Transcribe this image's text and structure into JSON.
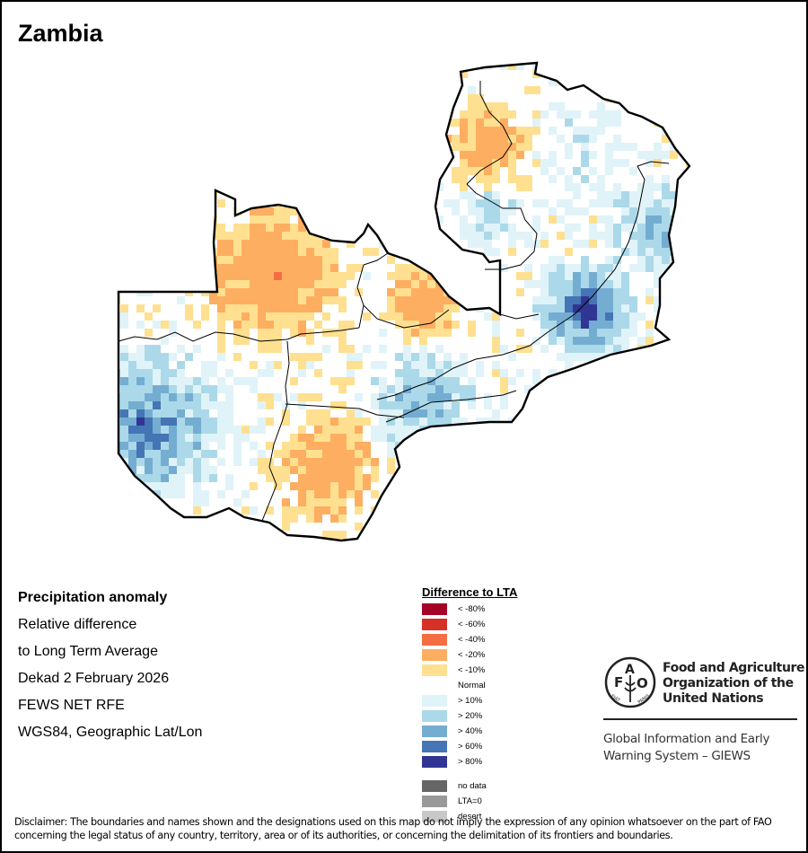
{
  "map": {
    "title": "Zambia",
    "country": "Zambia"
  },
  "info": {
    "heading": "Precipitation anomaly",
    "line1": "Relative difference",
    "line2": "to Long Term Average",
    "period": "Dekad 2 February 2026",
    "source": "FEWS NET RFE",
    "projection": "WGS84, Geographic Lat/Lon"
  },
  "legend": {
    "title": "Difference to LTA",
    "classes": [
      {
        "label": "< -80%",
        "color": "#a50026"
      },
      {
        "label": "< -60%",
        "color": "#d73027"
      },
      {
        "label": "< -40%",
        "color": "#f46d43"
      },
      {
        "label": "< -20%",
        "color": "#fdae61"
      },
      {
        "label": "< -10%",
        "color": "#fee090"
      },
      {
        "label": "Normal",
        "color": "#ffffff"
      },
      {
        "label": "> 10%",
        "color": "#e0f3f8"
      },
      {
        "label": "> 20%",
        "color": "#abd9e9"
      },
      {
        "label": "> 40%",
        "color": "#74add1"
      },
      {
        "label": "> 60%",
        "color": "#4575b4"
      },
      {
        "label": "> 80%",
        "color": "#313695"
      }
    ],
    "extra": [
      {
        "label": "no data",
        "color": "#666666"
      },
      {
        "label": "LTA=0",
        "color": "#999999"
      },
      {
        "label": "desert",
        "color": "#c8c8c8"
      }
    ]
  },
  "logo": {
    "org_line1": "Food and Agriculture",
    "org_line2": "Organization of the",
    "org_line3": "United Nations",
    "logo_letters": "F A O FIAT PANIS",
    "giews_line1": "Global Information and Early",
    "giews_line2": "Warning System – GIEWS"
  },
  "disclaimer": {
    "line1": "Disclaimer: The boundaries and names shown and the designations used on this map do not imply the expression of any opinion whatsoever on the part of FAO",
    "line2": "concerning the legal status of any country, territory, area or of its authorities, or concerning the delimitation of its frontiers and boundaries."
  }
}
